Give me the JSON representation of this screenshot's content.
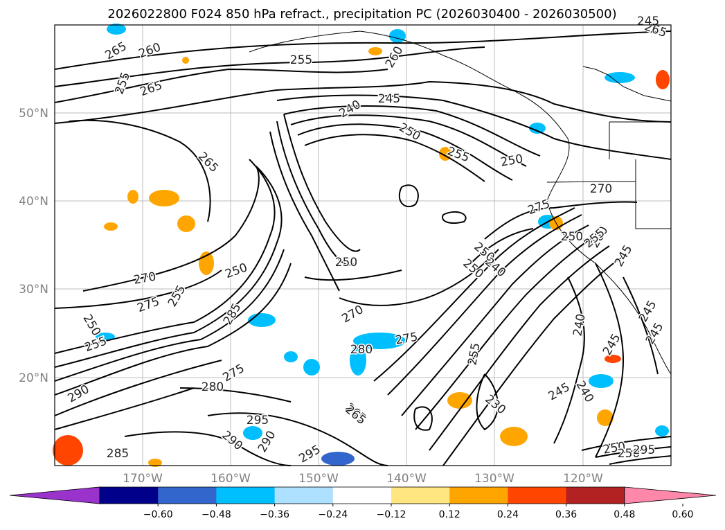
{
  "title": "2026022800 F024 850 hPa refract., precipitation PC (2026030400 - 2026030500)",
  "lat_labels": [
    "50°N",
    "40°N",
    "30°N",
    "20°N"
  ],
  "lon_labels": [
    "170°W",
    "160°W",
    "150°W",
    "140°W",
    "130°W",
    "120°W"
  ],
  "colorbar": {
    "colors": [
      "#9933cc",
      "#00008b",
      "#3366cc",
      "#00bfff",
      "#aee0ff",
      "#ffffff",
      "#ffe680",
      "#ffa500",
      "#ff4500",
      "#b22222",
      "#ff88aa"
    ],
    "tick_labels": [
      "−0.60",
      "−0.48",
      "−0.36",
      "−0.24",
      "−0.12",
      "0.12",
      "0.24",
      "0.36",
      "0.48",
      "0.60"
    ]
  },
  "contour_labels": [
    "265",
    "260",
    "255",
    "265",
    "245",
    "260",
    "265",
    "255",
    "240",
    "250",
    "250",
    "255",
    "250",
    "265",
    "270",
    "275",
    "250",
    "255",
    "245",
    "270",
    "250",
    "275",
    "255",
    "260",
    "255",
    "245",
    "240",
    "245",
    "270",
    "275",
    "280",
    "285",
    "280",
    "275",
    "265",
    "290",
    "295",
    "245",
    "250",
    "250",
    "295",
    "290",
    "290",
    "285",
    "295",
    "240",
    "245",
    "245",
    "250",
    "240",
    "230",
    "255",
    "250",
    "250",
    "265"
  ]
}
